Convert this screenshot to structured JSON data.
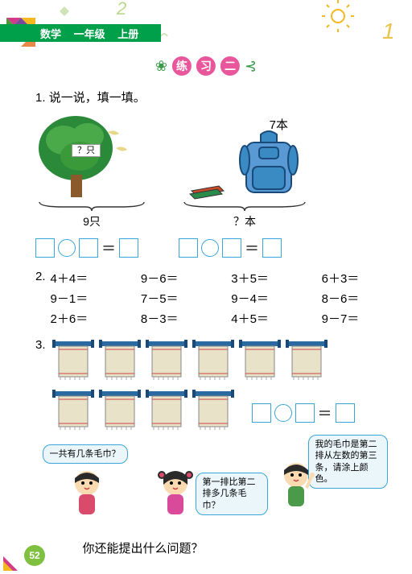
{
  "header": {
    "subject": "数学",
    "grade": "一年级",
    "volume": "上册"
  },
  "title": {
    "char1": "练",
    "char2": "习",
    "char3": "二"
  },
  "page_number": "52",
  "colors": {
    "green": "#00a04a",
    "pink": "#e8579b",
    "blue_border": "#3aa5d9",
    "bubble_bg": "#eaf6fa",
    "page_green": "#7fc041",
    "magenta": "#d33a8a",
    "yellow": "#f5b81f",
    "tree_green": "#2a8a3a",
    "tree_green2": "#4aaa4a",
    "trunk": "#8a5a2a",
    "towel_bar": "#2a6aa0",
    "towel_fill": "#e8e2c8",
    "book1": "#2a8a4a",
    "book2": "#c94a2a",
    "bag": "#3a8ac4"
  },
  "problem1": {
    "number": "1.",
    "instruction": "说一说，填一填。",
    "tree_box_label": "？只",
    "tree_brace_label": "9只",
    "bag_label": "7本",
    "books_brace_label": "？本"
  },
  "problem2": {
    "number": "2.",
    "equations": [
      "4＋4＝",
      "9－6＝",
      "3＋5＝",
      "6＋3＝",
      "9－1＝",
      "7－5＝",
      "9－4＝",
      "8－6＝",
      "2＋6＝",
      "8－3＝",
      "4＋5＝",
      "9－7＝"
    ]
  },
  "problem3": {
    "number": "3.",
    "towel_row1_count": 6,
    "towel_row2_count": 4,
    "bubble1": "一共有几条毛巾？",
    "bubble2": "第一排比第二排多几条毛巾？",
    "bubble3": "我的毛巾是第二排从左数的第三条，请涂上颜色。",
    "question": "你还能提出什么问题？"
  }
}
